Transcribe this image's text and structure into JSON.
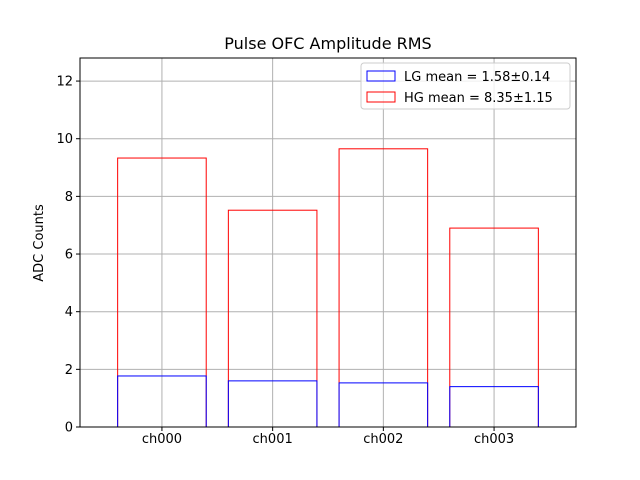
{
  "chart_data": {
    "type": "bar",
    "title": "Pulse OFC Amplitude RMS",
    "xlabel": "",
    "ylabel": "ADC Counts",
    "categories": [
      "ch000",
      "ch001",
      "ch002",
      "ch003"
    ],
    "ylim": [
      0,
      12.8
    ],
    "yticks": [
      0,
      2,
      4,
      6,
      8,
      10,
      12
    ],
    "grid": true,
    "legend_position": "top-right",
    "bar_style": "outline",
    "series": [
      {
        "name": "HG mean = 8.35±1.15",
        "color": "#ff0000",
        "values": [
          9.33,
          7.52,
          9.65,
          6.9
        ]
      },
      {
        "name": "LG mean = 1.58±0.14",
        "color": "#0000ff",
        "values": [
          1.77,
          1.6,
          1.53,
          1.4
        ]
      }
    ],
    "legend_order": [
      1,
      0
    ]
  }
}
